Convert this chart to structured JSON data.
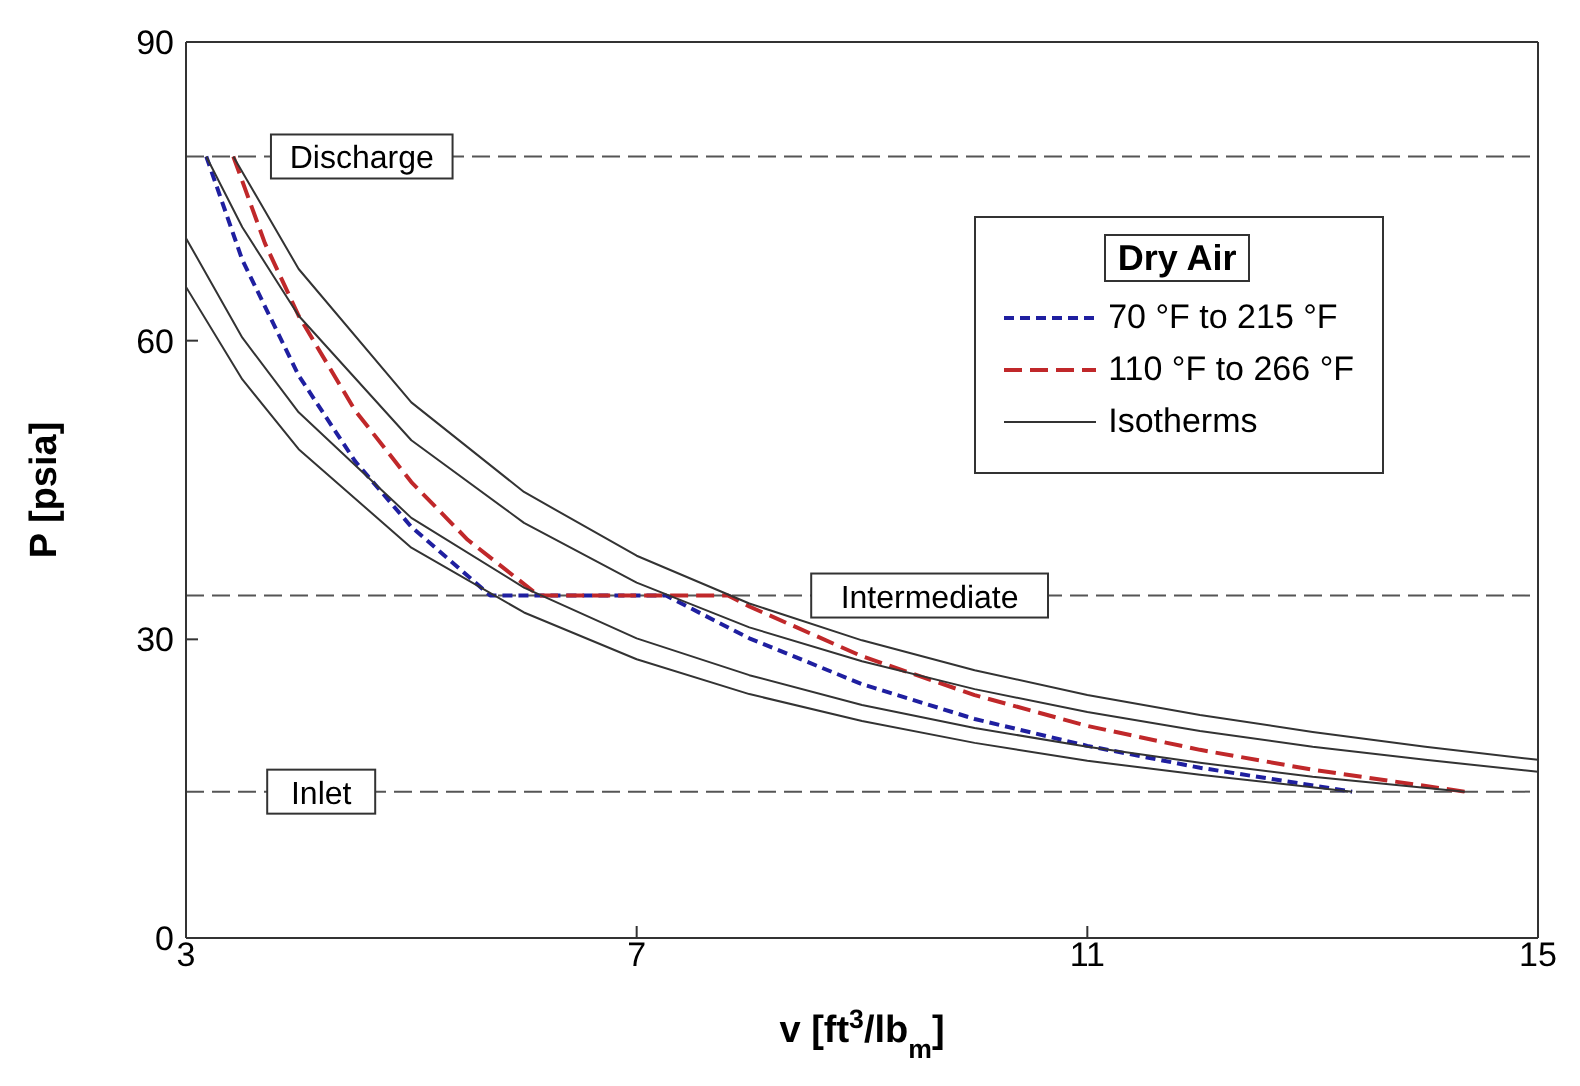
{
  "chart_data": {
    "type": "line",
    "xlabel": "v [ft$^{3}$/lb$_{m}$]",
    "ylabel": "P [psia]",
    "legend_title": "Dry Air",
    "xlim": [
      3,
      15
    ],
    "xticks": [
      3,
      7,
      11,
      15
    ],
    "ylim": [
      0,
      90
    ],
    "yticks": [
      0,
      30,
      60,
      90
    ],
    "legend": "top right",
    "series": [
      {
        "name": "70 °F to 215 °F",
        "color": "#1f1fa0",
        "line_style": "dashed",
        "x": [
          3.18,
          3.5,
          4,
          4.5,
          5,
          5.7,
          7.26,
          8,
          9,
          10,
          11,
          12,
          13.35
        ],
        "values": [
          78.5,
          68.1,
          56.5,
          47.9,
          41.3,
          34.4,
          34.4,
          30.1,
          25.5,
          22.0,
          19.3,
          17.1,
          14.7
        ]
      },
      {
        "name": "110 °F to 266 °F",
        "color": "#c0282a",
        "line_style": "dashed",
        "x": [
          3.42,
          3.7,
          4,
          4.5,
          5,
          5.5,
          6.13,
          7.81,
          8,
          9,
          10,
          11,
          12,
          13,
          14.35
        ],
        "values": [
          78.5,
          69.8,
          62.5,
          53.0,
          45.8,
          40.0,
          34.4,
          34.4,
          33.3,
          28.3,
          24.4,
          21.3,
          18.9,
          16.9,
          14.7
        ]
      },
      {
        "name": "Isotherms",
        "color": "#333333",
        "line_style": "solid",
        "x": [
          3,
          3.5,
          4,
          5,
          6,
          7,
          8,
          9,
          10,
          11,
          12,
          13.35
        ],
        "values": [
          65.4,
          56.1,
          49.1,
          39.2,
          32.7,
          28.0,
          24.5,
          21.8,
          19.6,
          17.8,
          16.4,
          14.7
        ]
      },
      {
        "color": "#333333",
        "line_style": "solid",
        "x": [
          3,
          3.5,
          4,
          5,
          6,
          7,
          8,
          9,
          10,
          11,
          12,
          13,
          14.35
        ],
        "values": [
          70.3,
          60.3,
          52.8,
          42.2,
          35.2,
          30.1,
          26.4,
          23.4,
          21.1,
          19.2,
          17.6,
          16.2,
          14.7
        ]
      },
      {
        "color": "#333333",
        "line_style": "solid",
        "x": [
          3.18,
          3.5,
          4,
          5,
          6,
          7,
          8,
          9,
          10,
          11,
          12,
          13,
          14,
          15
        ],
        "values": [
          78.5,
          71.4,
          62.5,
          50.0,
          41.7,
          35.7,
          31.2,
          27.8,
          25.0,
          22.7,
          20.8,
          19.2,
          17.9,
          16.7
        ]
      },
      {
        "color": "#333333",
        "line_style": "solid",
        "x": [
          3.42,
          4,
          5,
          6,
          7,
          8,
          9,
          10,
          11,
          12,
          13,
          14,
          15
        ],
        "values": [
          78.5,
          67.2,
          53.8,
          44.8,
          38.4,
          33.6,
          29.9,
          26.9,
          24.4,
          22.4,
          20.7,
          19.2,
          17.9
        ]
      }
    ],
    "ref_lines": [
      {
        "axis": "y",
        "value": 78.5,
        "label": "Discharge",
        "color": "#555555",
        "line_style": "dashed"
      },
      {
        "axis": "y",
        "value": 34.4,
        "label": "Intermediate",
        "color": "#555555",
        "line_style": "dashed"
      },
      {
        "axis": "y",
        "value": 14.7,
        "label": "Inlet",
        "color": "#555555",
        "line_style": "dashed"
      }
    ]
  }
}
